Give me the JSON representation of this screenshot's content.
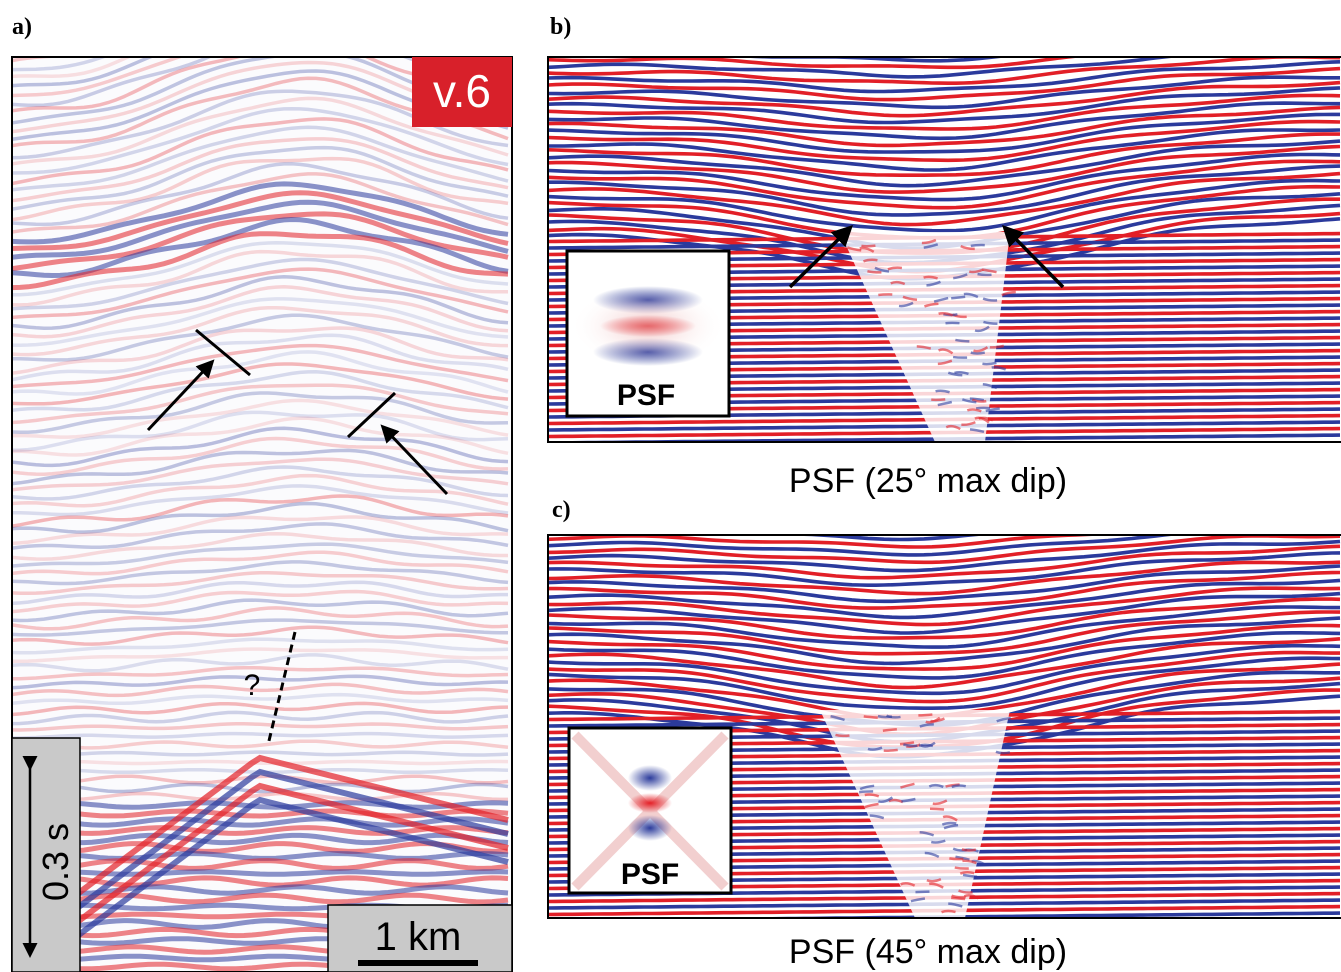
{
  "panels": {
    "a": {
      "label": "a)",
      "badge": "v.6",
      "question": "?",
      "time_scale": "0.3 s",
      "distance_scale": "1 km"
    },
    "b": {
      "label": "b)",
      "inset": "PSF",
      "caption": "PSF (25° max dip)"
    },
    "c": {
      "label": "c)",
      "inset": "PSF",
      "caption": "PSF (45° max dip)"
    }
  }
}
